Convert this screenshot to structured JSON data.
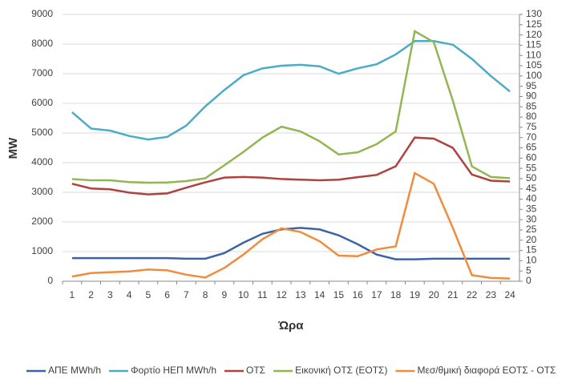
{
  "chart_data": {
    "type": "line",
    "x_label": "Ώρα",
    "y_label": "MW",
    "categories": [
      "1",
      "2",
      "3",
      "4",
      "5",
      "6",
      "7",
      "8",
      "9",
      "10",
      "11",
      "12",
      "13",
      "14",
      "15",
      "16",
      "17",
      "18",
      "19",
      "20",
      "21",
      "22",
      "23",
      "24"
    ],
    "ylim": [
      0,
      9000
    ],
    "yticks": [
      0,
      1000,
      2000,
      3000,
      4000,
      5000,
      6000,
      7000,
      8000,
      9000
    ],
    "y2lim": [
      0,
      130
    ],
    "y2ticks": [
      0,
      5,
      10,
      15,
      20,
      25,
      30,
      35,
      40,
      45,
      50,
      55,
      60,
      65,
      70,
      75,
      80,
      85,
      90,
      95,
      100,
      105,
      110,
      115,
      120,
      125,
      130
    ],
    "series": [
      {
        "name": "ΑΠΕ MWh/h",
        "color": "#3b64a5",
        "values": [
          780,
          780,
          780,
          780,
          780,
          780,
          760,
          760,
          950,
          1300,
          1600,
          1750,
          1800,
          1750,
          1550,
          1250,
          900,
          740,
          740,
          760,
          760,
          760,
          760,
          760
        ]
      },
      {
        "name": "Φορτίο ΗΕΠ MWh/h",
        "color": "#4bacc6",
        "values": [
          5700,
          5150,
          5080,
          4900,
          4780,
          4870,
          5250,
          5900,
          6450,
          6950,
          7180,
          7270,
          7300,
          7250,
          7000,
          7180,
          7320,
          7650,
          8100,
          8100,
          7980,
          7500,
          6920,
          6400
        ]
      },
      {
        "name": "ΟΤΣ",
        "color": "#b0413e",
        "axis": "y2",
        "values": [
          47.5,
          45.2,
          44.8,
          43.2,
          42.3,
          42.8,
          45.6,
          48.2,
          50.5,
          50.8,
          50.5,
          49.8,
          49.5,
          49.2,
          49.5,
          50.7,
          51.8,
          56,
          70,
          69.5,
          65,
          52,
          49,
          48.6
        ]
      },
      {
        "name": "Εικονική ΟΤΣ (ΕΟΤΣ)",
        "color": "#92b652",
        "axis": "y2",
        "values": [
          49.8,
          49.2,
          49.2,
          48.3,
          48,
          48.1,
          48.8,
          50.2,
          56.5,
          63,
          70,
          75.3,
          73,
          68.2,
          61.8,
          62.8,
          66.8,
          73,
          121.8,
          116.5,
          88,
          56,
          50.8,
          50.2
        ]
      },
      {
        "name": "Μεσ/θμική διαφορά ΕΟΤΣ - ΟΤΣ",
        "color": "#f08c3c",
        "axis": "y2",
        "values": [
          2.3,
          4,
          4.4,
          4.8,
          5.7,
          5.3,
          3.2,
          1.8,
          6.5,
          13,
          20.5,
          25.8,
          24,
          19.5,
          12.5,
          12.2,
          15.5,
          17,
          52.7,
          47.5,
          26,
          3,
          1.6,
          1.3
        ]
      }
    ]
  }
}
